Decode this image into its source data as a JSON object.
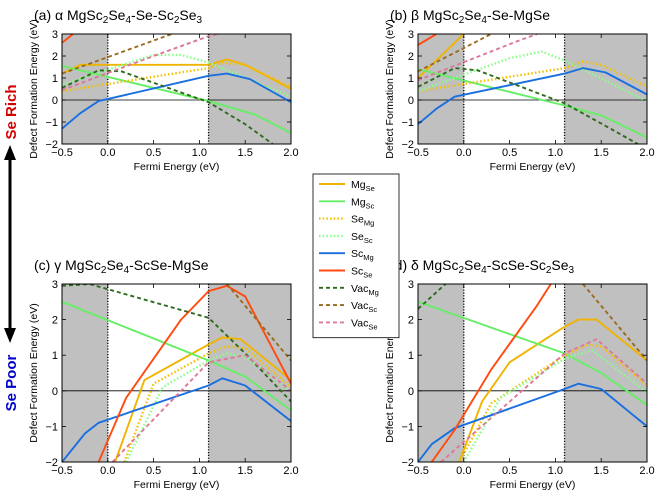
{
  "side_labels": {
    "rich": "Se Rich",
    "poor": "Se Poor"
  },
  "legend": [
    {
      "base": "Mg",
      "sub": "Se",
      "color": "#f0b400",
      "dash": "solid"
    },
    {
      "base": "Mg",
      "sub": "Sc",
      "color": "#66ee66",
      "dash": "solid"
    },
    {
      "base": "Se",
      "sub": "Mg",
      "color": "#f5c000",
      "dash": "dotted"
    },
    {
      "base": "Se",
      "sub": "Sc",
      "color": "#88ff88",
      "dash": "dotted"
    },
    {
      "base": "Sc",
      "sub": "Mg",
      "color": "#1a6fe0",
      "dash": "solid"
    },
    {
      "base": "Sc",
      "sub": "Se",
      "color": "#ff4a10",
      "dash": "solid"
    },
    {
      "base": "Vac",
      "sub": "Mg",
      "color": "#2e6b1e",
      "dash": "dashed"
    },
    {
      "base": "Vac",
      "sub": "Sc",
      "color": "#9a6a20",
      "dash": "dashed"
    },
    {
      "base": "Vac",
      "sub": "Se",
      "color": "#dd7799",
      "dash": "dashed"
    }
  ],
  "chart_data": [
    {
      "type": "line",
      "title": "(a) α MgSc2Se4-Se-Sc2Se3",
      "xlabel": "Fermi Energy (eV)",
      "ylabel": "Defect Formation Energy (eV)",
      "xlim": [
        -0.5,
        2.0
      ],
      "ylim": [
        -2,
        3
      ],
      "xticks": [
        "−0.5",
        "0.0",
        "0.5",
        "1.0",
        "1.5",
        "2.0"
      ],
      "yticks": [
        "−2",
        "−1",
        "0",
        "1",
        "2",
        "3"
      ],
      "band_edges": [
        0.0,
        1.1
      ],
      "series": [
        {
          "name": "MgSe",
          "points": [
            [
              -0.5,
              1.2
            ],
            [
              -0.3,
              1.6
            ],
            [
              1.1,
              1.6
            ],
            [
              1.3,
              1.85
            ],
            [
              1.5,
              1.6
            ],
            [
              2.0,
              0.5
            ]
          ]
        },
        {
          "name": "MgSc",
          "points": [
            [
              -0.5,
              1.55
            ],
            [
              1.1,
              -0.05
            ],
            [
              1.6,
              -0.65
            ],
            [
              2.0,
              -1.5
            ]
          ]
        },
        {
          "name": "SeMg",
          "points": [
            [
              -0.5,
              0.4
            ],
            [
              1.1,
              1.45
            ],
            [
              1.25,
              1.7
            ],
            [
              1.5,
              1.6
            ],
            [
              2.0,
              0.6
            ]
          ]
        },
        {
          "name": "SeSc",
          "points": [
            [
              -0.5,
              0.7
            ],
            [
              0.5,
              2.05
            ],
            [
              0.8,
              2.05
            ],
            [
              1.1,
              1.7
            ],
            [
              2.0,
              0.15
            ]
          ]
        },
        {
          "name": "ScMg",
          "points": [
            [
              -0.5,
              -1.3
            ],
            [
              -0.3,
              -0.6
            ],
            [
              -0.1,
              -0.05
            ],
            [
              1.1,
              1.1
            ],
            [
              1.3,
              1.2
            ],
            [
              1.55,
              0.95
            ],
            [
              2.0,
              -0.1
            ]
          ]
        },
        {
          "name": "ScSe",
          "points": [
            [
              -0.5,
              2.6
            ],
            [
              -0.38,
              3.0
            ]
          ]
        },
        {
          "name": "VacMg",
          "points": [
            [
              -0.5,
              0.55
            ],
            [
              -0.1,
              1.35
            ],
            [
              0.15,
              1.3
            ],
            [
              1.1,
              -0.1
            ],
            [
              1.5,
              -1.1
            ],
            [
              1.8,
              -2.0
            ]
          ]
        },
        {
          "name": "VacSc",
          "points": [
            [
              -0.5,
              1.2
            ],
            [
              0.7,
              3.0
            ]
          ]
        },
        {
          "name": "VacSe",
          "points": [
            [
              -0.5,
              0.45
            ],
            [
              0.5,
              2.0
            ],
            [
              1.1,
              2.9
            ],
            [
              1.2,
              3.0
            ]
          ]
        }
      ]
    },
    {
      "type": "line",
      "title": "(b) β MgSc2Se4-Se-MgSe",
      "xlabel": "Fermi Energy (eV)",
      "ylabel": "Defect Formation Energy (eV)",
      "xlim": [
        -0.5,
        2.0
      ],
      "ylim": [
        -2,
        3
      ],
      "xticks": [
        "−0.5",
        "0.0",
        "0.5",
        "1.0",
        "1.5",
        "2.0"
      ],
      "yticks": [
        "−2",
        "−1",
        "0",
        "1",
        "2",
        "3"
      ],
      "band_edges": [
        0.0,
        1.1
      ],
      "series": [
        {
          "name": "MgSe",
          "points": [
            [
              -0.5,
              1.0
            ],
            [
              0.0,
              3.0
            ]
          ]
        },
        {
          "name": "MgSc",
          "points": [
            [
              -0.5,
              1.4
            ],
            [
              1.1,
              -0.25
            ],
            [
              1.5,
              -0.7
            ],
            [
              2.0,
              -1.7
            ]
          ]
        },
        {
          "name": "SeMg",
          "points": [
            [
              -0.5,
              0.4
            ],
            [
              1.1,
              1.45
            ],
            [
              1.3,
              1.75
            ],
            [
              1.5,
              1.6
            ],
            [
              2.0,
              0.6
            ]
          ]
        },
        {
          "name": "SeSc",
          "points": [
            [
              -0.5,
              0.4
            ],
            [
              0.5,
              1.9
            ],
            [
              0.85,
              2.2
            ],
            [
              1.1,
              1.8
            ],
            [
              2.0,
              -0.05
            ]
          ]
        },
        {
          "name": "ScMg",
          "points": [
            [
              -0.5,
              -1.1
            ],
            [
              -0.3,
              -0.4
            ],
            [
              -0.1,
              0.15
            ],
            [
              1.1,
              1.2
            ],
            [
              1.3,
              1.45
            ],
            [
              1.55,
              1.25
            ],
            [
              2.0,
              0.25
            ]
          ]
        },
        {
          "name": "ScSe",
          "points": [
            [
              -0.5,
              2.5
            ],
            [
              -0.3,
              3.0
            ]
          ]
        },
        {
          "name": "VacMg",
          "points": [
            [
              -0.5,
              0.6
            ],
            [
              -0.1,
              1.45
            ],
            [
              0.15,
              1.35
            ],
            [
              1.1,
              -0.15
            ],
            [
              1.6,
              -1.3
            ],
            [
              1.9,
              -2.0
            ]
          ]
        },
        {
          "name": "VacSc",
          "points": [
            [
              -0.5,
              1.3
            ],
            [
              0.3,
              3.0
            ]
          ]
        },
        {
          "name": "VacSe",
          "points": [
            [
              -0.5,
              0.9
            ],
            [
              0.6,
              2.7
            ],
            [
              0.8,
              3.0
            ]
          ]
        }
      ]
    },
    {
      "type": "line",
      "title": "(c) γ MgSc2Se4-ScSe-MgSe",
      "xlabel": "Fermi Energy (eV)",
      "ylabel": "Defect Formation Energy (eV)",
      "xlim": [
        -0.5,
        2.0
      ],
      "ylim": [
        -2,
        3
      ],
      "xticks": [
        "−0.5",
        "0.0",
        "0.5",
        "1.0",
        "1.5",
        "2.0"
      ],
      "yticks": [
        "−2",
        "−1",
        "0",
        "1",
        "2",
        "3"
      ],
      "band_edges": [
        0.0,
        1.1
      ],
      "series": [
        {
          "name": "MgSe",
          "points": [
            [
              0.08,
              -2.0
            ],
            [
              0.4,
              0.3
            ],
            [
              1.1,
              1.3
            ],
            [
              1.25,
              1.5
            ],
            [
              1.45,
              1.45
            ],
            [
              2.0,
              0.3
            ]
          ]
        },
        {
          "name": "MgSc",
          "points": [
            [
              -0.5,
              2.5
            ],
            [
              1.1,
              0.85
            ],
            [
              1.5,
              0.4
            ],
            [
              2.0,
              -0.55
            ]
          ]
        },
        {
          "name": "SeMg",
          "points": [
            [
              0.18,
              -2.0
            ],
            [
              0.5,
              0.2
            ],
            [
              1.1,
              1.05
            ],
            [
              1.3,
              1.25
            ],
            [
              1.5,
              1.2
            ],
            [
              2.0,
              0.1
            ]
          ]
        },
        {
          "name": "SeSc",
          "points": [
            [
              0.2,
              -2.0
            ],
            [
              0.6,
              0.1
            ],
            [
              1.1,
              0.85
            ],
            [
              1.3,
              1.05
            ],
            [
              1.5,
              0.95
            ],
            [
              2.0,
              0.0
            ]
          ]
        },
        {
          "name": "ScMg",
          "points": [
            [
              -0.5,
              -2.0
            ],
            [
              -0.25,
              -1.2
            ],
            [
              -0.1,
              -0.9
            ],
            [
              1.1,
              0.15
            ],
            [
              1.25,
              0.35
            ],
            [
              1.5,
              0.15
            ],
            [
              2.0,
              -0.85
            ]
          ]
        },
        {
          "name": "ScSe",
          "points": [
            [
              -0.1,
              -2.0
            ],
            [
              0.2,
              -0.2
            ],
            [
              0.8,
              2.0
            ],
            [
              1.1,
              2.8
            ],
            [
              1.3,
              2.95
            ],
            [
              1.5,
              2.65
            ],
            [
              2.0,
              0.2
            ]
          ]
        },
        {
          "name": "VacMg",
          "points": [
            [
              -0.5,
              2.95
            ],
            [
              -0.2,
              3.0
            ],
            [
              1.1,
              2.05
            ],
            [
              1.5,
              1.05
            ],
            [
              2.0,
              -0.3
            ]
          ]
        },
        {
          "name": "VacSc",
          "points": [
            [
              1.3,
              3.0
            ],
            [
              2.0,
              0.85
            ]
          ]
        },
        {
          "name": "VacSe",
          "points": [
            [
              0.05,
              -2.0
            ],
            [
              1.1,
              0.8
            ],
            [
              1.5,
              1.0
            ],
            [
              2.0,
              0.0
            ]
          ]
        }
      ]
    },
    {
      "type": "line",
      "title": "(d) δ MgSc2Se4-ScSe-Sc2Se3",
      "xlabel": "Fermi Energy (eV)",
      "ylabel": "Defect Formation Energy (eV)",
      "xlim": [
        -0.5,
        2.0
      ],
      "ylim": [
        -2,
        3
      ],
      "xticks": [
        "−0.5",
        "0.0",
        "0.5",
        "1.0",
        "1.5",
        "2.0"
      ],
      "yticks": [
        "−2",
        "−1",
        "0",
        "1",
        "2",
        "3"
      ],
      "band_edges": [
        0.0,
        1.1
      ],
      "series": [
        {
          "name": "MgSe",
          "points": [
            [
              -0.05,
              -2.0
            ],
            [
              0.2,
              -0.3
            ],
            [
              0.5,
              0.8
            ],
            [
              1.1,
              1.8
            ],
            [
              1.25,
              2.0
            ],
            [
              1.45,
              2.0
            ],
            [
              2.0,
              0.85
            ]
          ]
        },
        {
          "name": "MgSc",
          "points": [
            [
              -0.5,
              2.5
            ],
            [
              1.1,
              1.05
            ],
            [
              1.5,
              0.5
            ],
            [
              2.0,
              -0.4
            ]
          ]
        },
        {
          "name": "SeMg",
          "points": [
            [
              -0.05,
              -2.0
            ],
            [
              0.3,
              -0.35
            ],
            [
              1.1,
              1.0
            ],
            [
              1.35,
              1.3
            ],
            [
              1.5,
              1.25
            ],
            [
              2.0,
              0.15
            ]
          ]
        },
        {
          "name": "SeSc",
          "points": [
            [
              0.0,
              -2.0
            ],
            [
              0.4,
              -0.2
            ],
            [
              1.1,
              0.9
            ],
            [
              1.4,
              1.15
            ],
            [
              2.0,
              -0.05
            ]
          ]
        },
        {
          "name": "ScMg",
          "points": [
            [
              -0.5,
              -2.0
            ],
            [
              -0.35,
              -1.5
            ],
            [
              -0.1,
              -1.05
            ],
            [
              1.1,
              0.05
            ],
            [
              1.25,
              0.2
            ],
            [
              1.5,
              0.05
            ],
            [
              2.0,
              -1.0
            ]
          ]
        },
        {
          "name": "ScSe",
          "points": [
            [
              -0.35,
              -2.0
            ],
            [
              -0.1,
              -1.1
            ],
            [
              0.3,
              0.6
            ],
            [
              0.8,
              2.4
            ],
            [
              0.95,
              3.0
            ]
          ]
        },
        {
          "name": "VacMg",
          "points": [
            [
              -0.5,
              2.3
            ],
            [
              -0.2,
              3.0
            ]
          ]
        },
        {
          "name": "VacSc",
          "points": [
            [
              1.3,
              3.0
            ],
            [
              2.0,
              0.85
            ]
          ]
        },
        {
          "name": "VacSe",
          "points": [
            [
              -0.25,
              -2.0
            ],
            [
              1.1,
              1.05
            ],
            [
              1.45,
              1.45
            ],
            [
              2.0,
              0.2
            ]
          ]
        }
      ]
    }
  ]
}
